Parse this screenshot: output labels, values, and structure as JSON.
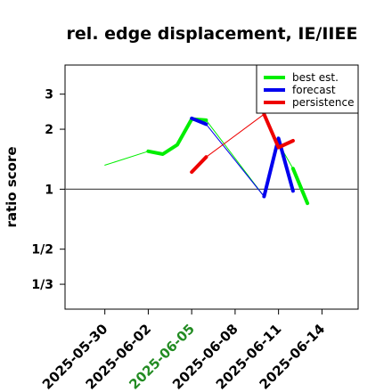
{
  "chart_data": {
    "type": "line",
    "title": "rel. edge displacement, IE/IIEE",
    "xlabel": "",
    "ylabel": "ratio score",
    "y_scale": "log",
    "y_ticks": [
      {
        "value": 3,
        "label": "3"
      },
      {
        "value": 2,
        "label": "2"
      },
      {
        "value": 1,
        "label": "1"
      },
      {
        "value": 0.5,
        "label": "1/2"
      },
      {
        "value": 0.3333,
        "label": "1/3"
      }
    ],
    "x_ticks": [
      {
        "date": "2025-05-30",
        "label": "2025-05-30",
        "color": "#000000"
      },
      {
        "date": "2025-06-02",
        "label": "2025-06-02",
        "color": "#000000"
      },
      {
        "date": "2025-06-05",
        "label": "2025-06-05",
        "color": "#228B22"
      },
      {
        "date": "2025-06-08",
        "label": "2025-06-08",
        "color": "#000000"
      },
      {
        "date": "2025-06-11",
        "label": "2025-06-11",
        "color": "#000000"
      },
      {
        "date": "2025-06-14",
        "label": "2025-06-14",
        "color": "#000000"
      }
    ],
    "xlim": [
      "2025-05-27T06:00",
      "2025-06-16T12:00"
    ],
    "ylim": [
      0.25,
      4.2
    ],
    "reference_line": 1,
    "legend_position": "top-right",
    "series": [
      {
        "name": "best est.",
        "color": "#00ee00",
        "style": "thick",
        "points": [
          {
            "x": "2025-06-02",
            "y": 1.55
          },
          {
            "x": "2025-06-03",
            "y": 1.5
          },
          {
            "x": "2025-06-04",
            "y": 1.67
          },
          {
            "x": "2025-06-05",
            "y": 2.25
          },
          {
            "x": "2025-06-06",
            "y": 2.22
          }
        ]
      },
      {
        "name": "best est.",
        "color": "#00ee00",
        "style": "thick",
        "points": [
          {
            "x": "2025-06-12",
            "y": 1.27
          },
          {
            "x": "2025-06-13",
            "y": 0.85
          }
        ]
      },
      {
        "name": "best est.",
        "color": "#00ee00",
        "style": "thin",
        "points": [
          {
            "x": "2025-05-30",
            "y": 1.32
          },
          {
            "x": "2025-06-02",
            "y": 1.55
          }
        ]
      },
      {
        "name": "best est.",
        "color": "#00ee00",
        "style": "thin",
        "points": [
          {
            "x": "2025-06-06",
            "y": 2.22
          },
          {
            "x": "2025-06-10",
            "y": 0.92
          },
          {
            "x": "2025-06-11",
            "y": 1.7
          },
          {
            "x": "2025-06-12",
            "y": 1.27
          }
        ]
      },
      {
        "name": "forecast",
        "color": "#0000ee",
        "style": "thick",
        "points": [
          {
            "x": "2025-06-05",
            "y": 2.27
          },
          {
            "x": "2025-06-06",
            "y": 2.12
          }
        ]
      },
      {
        "name": "forecast",
        "color": "#0000ee",
        "style": "thick",
        "points": [
          {
            "x": "2025-06-10",
            "y": 0.92
          },
          {
            "x": "2025-06-11",
            "y": 1.8
          },
          {
            "x": "2025-06-12",
            "y": 0.98
          }
        ]
      },
      {
        "name": "forecast",
        "color": "#0000ee",
        "style": "thin",
        "points": [
          {
            "x": "2025-06-06",
            "y": 2.12
          },
          {
            "x": "2025-06-10",
            "y": 0.92
          }
        ]
      },
      {
        "name": "persistence",
        "color": "#ee0000",
        "style": "thick",
        "points": [
          {
            "x": "2025-06-05",
            "y": 1.22
          },
          {
            "x": "2025-06-06",
            "y": 1.45
          }
        ]
      },
      {
        "name": "persistence",
        "color": "#ee0000",
        "style": "thick",
        "points": [
          {
            "x": "2025-06-10",
            "y": 2.38
          },
          {
            "x": "2025-06-11",
            "y": 1.62
          },
          {
            "x": "2025-06-12",
            "y": 1.75
          }
        ]
      },
      {
        "name": "persistence",
        "color": "#ee0000",
        "style": "thin",
        "points": [
          {
            "x": "2025-06-06",
            "y": 1.45
          },
          {
            "x": "2025-06-10",
            "y": 2.38
          }
        ]
      }
    ],
    "legend": [
      {
        "name": "best est.",
        "color": "#00ee00"
      },
      {
        "name": "forecast",
        "color": "#0000ee"
      },
      {
        "name": "persistence",
        "color": "#ee0000"
      }
    ]
  }
}
